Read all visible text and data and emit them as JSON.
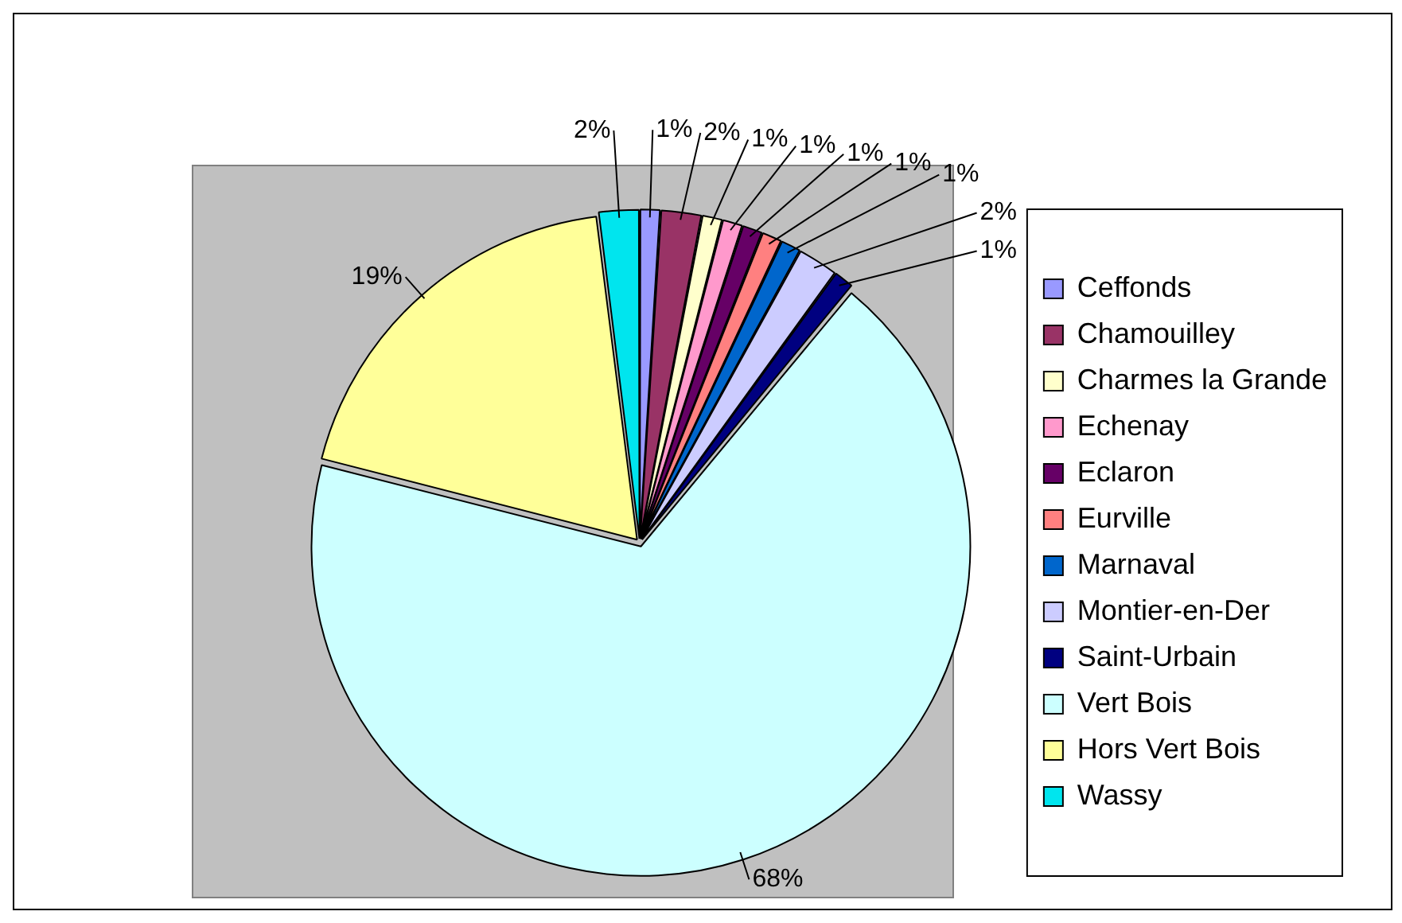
{
  "chart_data": {
    "type": "pie",
    "categories": [
      "Ceffonds",
      "Chamouilley",
      "Charmes la Grande",
      "Echenay",
      "Eclaron",
      "Eurville",
      "Marnaval",
      "Montier-en-Der",
      "Saint-Urbain",
      "Vert Bois",
      "Hors Vert Bois",
      "Wassy"
    ],
    "values": [
      1,
      2,
      1,
      1,
      1,
      1,
      1,
      2,
      1,
      68,
      19,
      2
    ],
    "value_labels": [
      "1%",
      "2%",
      "1%",
      "1%",
      "1%",
      "1%",
      "1%",
      "2%",
      "1%",
      "68%",
      "19%",
      "2%"
    ],
    "colors": [
      "#9999ff",
      "#993366",
      "#ffffcc",
      "#ff99cc",
      "#660066",
      "#ff8080",
      "#0066cc",
      "#ccccff",
      "#000080",
      "#ccffff",
      "#ffff99",
      "#00e5ee"
    ],
    "legend": "right"
  }
}
